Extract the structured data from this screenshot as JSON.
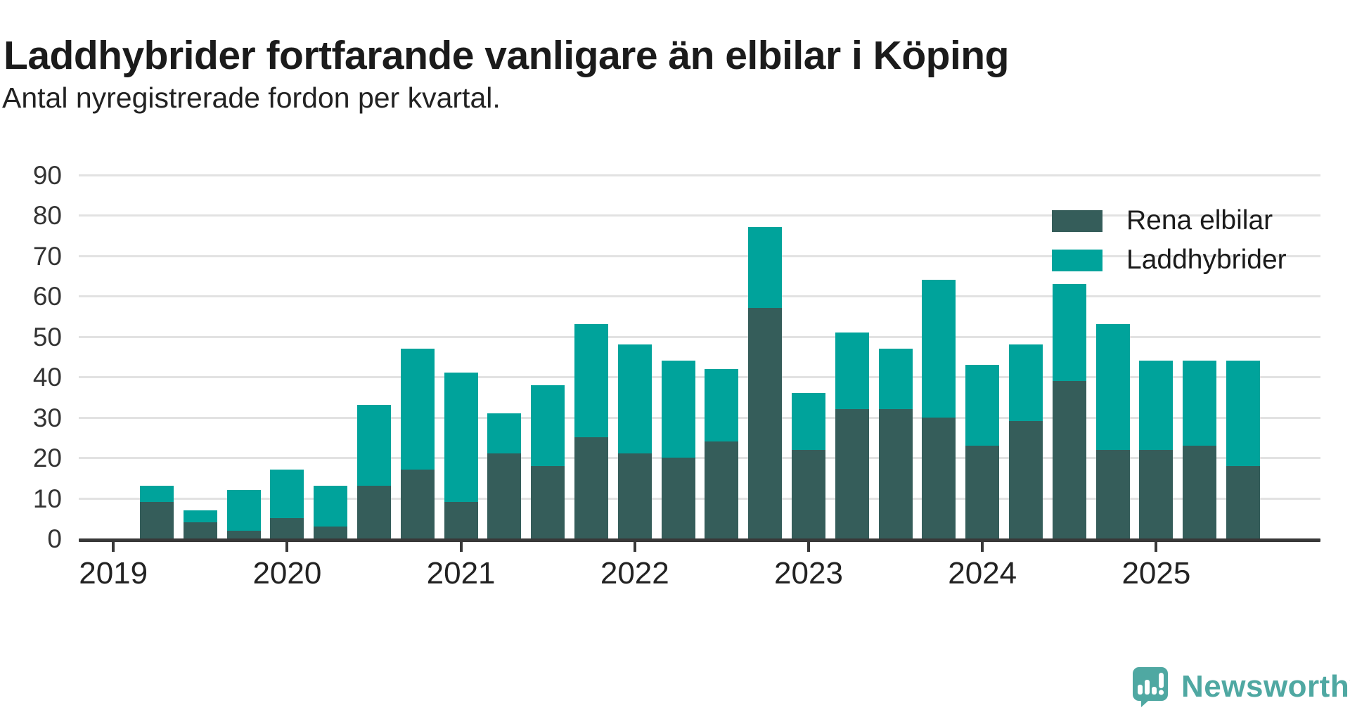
{
  "header": {
    "title": "Laddhybrider fortfarande vanligare än elbilar i Köping",
    "subtitle": "Antal nyregistrerade fordon per kvartal."
  },
  "legend": {
    "items": [
      {
        "label": "Rena elbilar",
        "color": "#355d5a"
      },
      {
        "label": "Laddhybrider",
        "color": "#00a39b"
      }
    ]
  },
  "y_axis": {
    "tick_labels": [
      "0",
      "10",
      "20",
      "30",
      "40",
      "50",
      "60",
      "70",
      "80",
      "90"
    ]
  },
  "x_axis": {
    "year_labels": [
      "2019",
      "2020",
      "2021",
      "2022",
      "2023",
      "2024",
      "2025"
    ]
  },
  "branding": {
    "name": "Newsworthy"
  },
  "colors": {
    "elbilar": "#355d5a",
    "laddhybrider": "#00a39b",
    "grid": "#e2e2e2",
    "axis": "#383838",
    "logo": "#4fa8a2",
    "background": "#ffffff"
  },
  "chart_data": {
    "type": "bar",
    "stacked": true,
    "title": "Laddhybrider fortfarande vanligare än elbilar i Köping",
    "subtitle": "Antal nyregistrerade fordon per kvartal.",
    "xlabel": "",
    "ylabel": "Antal nyregistrerade fordon",
    "ylim": [
      0,
      90
    ],
    "grid": true,
    "legend_position": "top-right",
    "categories": [
      "2019 Q2",
      "2019 Q3",
      "2019 Q4",
      "2020 Q1",
      "2020 Q2",
      "2020 Q3",
      "2020 Q4",
      "2021 Q1",
      "2021 Q2",
      "2021 Q3",
      "2021 Q4",
      "2022 Q1",
      "2022 Q2",
      "2022 Q3",
      "2022 Q4",
      "2023 Q1",
      "2023 Q2",
      "2023 Q3",
      "2023 Q4",
      "2024 Q1",
      "2024 Q2",
      "2024 Q3",
      "2024 Q4",
      "2025 Q1",
      "2025 Q2",
      "2025 Q3"
    ],
    "series": [
      {
        "name": "Rena elbilar",
        "color": "#355d5a",
        "values": [
          9,
          4,
          2,
          5,
          3,
          13,
          17,
          9,
          21,
          18,
          25,
          21,
          20,
          24,
          57,
          22,
          32,
          32,
          30,
          23,
          29,
          39,
          22,
          22,
          23,
          18
        ]
      },
      {
        "name": "Laddhybrider",
        "color": "#00a39b",
        "values": [
          4,
          3,
          10,
          12,
          10,
          20,
          30,
          32,
          10,
          20,
          28,
          27,
          24,
          18,
          20,
          14,
          19,
          15,
          34,
          20,
          19,
          24,
          31,
          22,
          21,
          26
        ]
      }
    ],
    "totals": [
      13,
      7,
      12,
      17,
      13,
      33,
      47,
      41,
      31,
      38,
      53,
      48,
      44,
      42,
      77,
      36,
      51,
      47,
      64,
      43,
      48,
      63,
      53,
      44,
      44,
      44
    ]
  }
}
